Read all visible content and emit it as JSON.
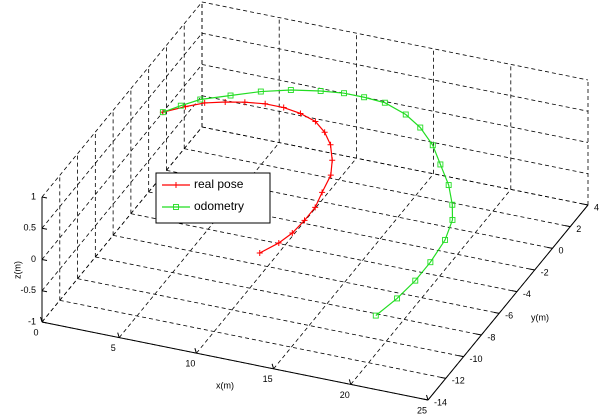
{
  "chart_data": {
    "type": "line3d",
    "xlabel": "x(m)",
    "ylabel": "y(m)",
    "zlabel": "z(m)",
    "xlim": [
      0,
      25
    ],
    "xticks": [
      0,
      5,
      10,
      15,
      20,
      25
    ],
    "ylim": [
      -14,
      4
    ],
    "yticks": [
      -14,
      -12,
      -10,
      -8,
      -6,
      -4,
      -2,
      0,
      2,
      4
    ],
    "zlim": [
      -1,
      1
    ],
    "zticks": [
      -1,
      -0.5,
      0,
      0.5,
      1
    ],
    "grid": true,
    "series": [
      {
        "name": "real pose",
        "color": "#ff0000",
        "marker": "+",
        "x": [
          0,
          1.0,
          1.9,
          3.0,
          4.1,
          5.3,
          6.5,
          7.7,
          8.9,
          9.9,
          10.8,
          11.6,
          12.2,
          12.5,
          12.8,
          12.8,
          12.7,
          12.4,
          11.8
        ],
        "y": [
          -0.4,
          0.4,
          1.0,
          1.4,
          1.7,
          1.9,
          1.9,
          1.7,
          1.3,
          0.6,
          -0.3,
          -1.5,
          -2.7,
          -4.2,
          -5.5,
          -6.7,
          -7.9,
          -8.9,
          -10.0
        ],
        "z": [
          0,
          0,
          0,
          0,
          0,
          0,
          0,
          0,
          0,
          0,
          0,
          0,
          0,
          0,
          0,
          0,
          0,
          0,
          0
        ]
      },
      {
        "name": "odometry",
        "color": "#22dd22",
        "marker": "s",
        "x": [
          0,
          0.7,
          1.5,
          3.0,
          4.5,
          6.1,
          7.8,
          9.2,
          10.5,
          11.9,
          13.6,
          15.0,
          16.5,
          17.8,
          19.2,
          20.3,
          21.0,
          21.5,
          21.7,
          21.7,
          21.5,
          21.1
        ],
        "y": [
          -0.4,
          0.4,
          1.2,
          2.0,
          2.8,
          3.4,
          3.8,
          4.0,
          4.0,
          3.9,
          3.3,
          2.5,
          1.3,
          -0.1,
          -1.6,
          -3.1,
          -4.3,
          -6.0,
          -8.0,
          -9.7,
          -11.4,
          -13.1
        ],
        "z": [
          0,
          0,
          0,
          0,
          0,
          0,
          0,
          0,
          0,
          0,
          0,
          0,
          0,
          0,
          0,
          0,
          0,
          0,
          0,
          0,
          0,
          0
        ]
      }
    ]
  }
}
